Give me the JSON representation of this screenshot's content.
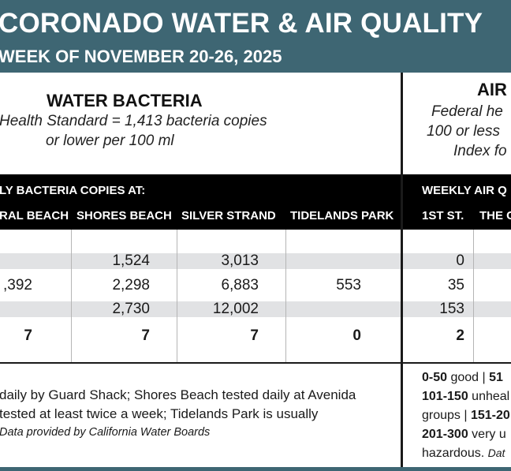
{
  "header": {
    "title": "CORONADO WATER & AIR QUALITY",
    "subtitle": "WEEK OF NOVEMBER 20-26, 2025"
  },
  "water": {
    "title": "WATER BACTERIA",
    "standard_line1": "Health Standard  = 1,413 bacteria copies",
    "standard_line2": "or lower per 100 ml",
    "bar_title": "LY BACTERIA COPIES AT:",
    "columns": [
      "RAL BEACH",
      "SHORES BEACH",
      "SILVER STRAND",
      "TIDELANDS PARK"
    ],
    "rows": [
      [
        "",
        "",
        "",
        ""
      ],
      [
        "",
        "1,524",
        "3,013",
        ""
      ],
      [
        ",392",
        "2,298",
        "6,883",
        "553"
      ],
      [
        "",
        "2,730",
        "12,002",
        ""
      ]
    ],
    "totals": [
      "7",
      "7",
      "7",
      "0"
    ],
    "footnote_line1": "daily by Guard Shack; Shores Beach tested daily at Avenida",
    "footnote_line2": "tested at least twice a week; Tidelands Park is usually",
    "footnote_source": "Data provided by California Water Boards"
  },
  "air": {
    "title": "AIR",
    "standard_line1": "Federal he",
    "standard_line2": "100 or less",
    "standard_line3": "Index fo",
    "bar_title": "WEEKLY AIR Q",
    "columns": [
      "1ST ST.",
      "THE C"
    ],
    "rows": [
      [
        ""
      ],
      [
        "0"
      ],
      [
        "35"
      ],
      [
        "153"
      ]
    ],
    "totals": [
      "2"
    ],
    "legend": {
      "l1_bold": "0-50",
      "l1_text": " good | ",
      "l1_bold2": "51",
      "l2_bold": "101-150",
      "l2_text": " unheal",
      "l3_text": "groups | ",
      "l3_bold": "151-20",
      "l4_bold": "201-300",
      "l4_text": " very u",
      "l5_text": "hazardous. ",
      "l5_italic": "Dat"
    }
  },
  "colors": {
    "header_bg": "#3e6673",
    "bar_bg": "#000000",
    "row_shade": "#e1e2e4"
  }
}
